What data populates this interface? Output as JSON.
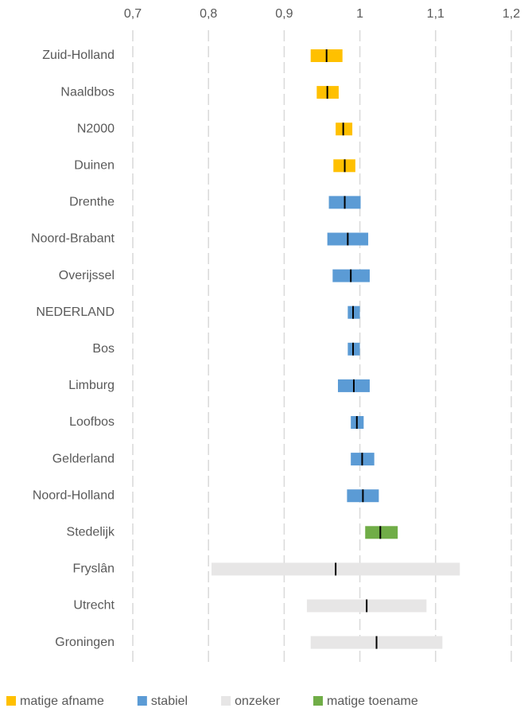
{
  "chart_data": {
    "type": "range",
    "categories": [
      "Zuid-Holland",
      "Naaldbos",
      "N2000",
      "Duinen",
      "Drenthe",
      "Noord-Brabant",
      "Overijssel",
      "NEDERLAND",
      "Bos",
      "Limburg",
      "Loofbos",
      "Gelderland",
      "Noord-Holland",
      "Stedelijk",
      "Fryslân",
      "Utrecht",
      "Groningen"
    ],
    "series": [
      {
        "name": "matige afname",
        "color": "#ffc000",
        "low": [
          0.935,
          0.943,
          0.968,
          0.965,
          null,
          null,
          null,
          null,
          null,
          null,
          null,
          null,
          null,
          null,
          null,
          null,
          null
        ],
        "high": [
          0.977,
          0.972,
          0.99,
          0.994,
          null,
          null,
          null,
          null,
          null,
          null,
          null,
          null,
          null,
          null,
          null,
          null,
          null
        ],
        "values": [
          0.956,
          0.957,
          0.978,
          0.98,
          null,
          null,
          null,
          null,
          null,
          null,
          null,
          null,
          null,
          null,
          null,
          null,
          null
        ]
      },
      {
        "name": "stabiel",
        "color": "#5b9bd5",
        "low": [
          null,
          null,
          null,
          null,
          0.959,
          0.957,
          0.964,
          0.984,
          0.984,
          0.971,
          0.988,
          0.988,
          0.983,
          null,
          null,
          null,
          null
        ],
        "high": [
          null,
          null,
          null,
          null,
          1.001,
          1.011,
          1.013,
          1.0,
          1.0,
          1.013,
          1.005,
          1.019,
          1.025,
          null,
          null,
          null,
          null
        ],
        "values": [
          null,
          null,
          null,
          null,
          0.98,
          0.984,
          0.988,
          0.991,
          0.991,
          0.992,
          0.996,
          1.003,
          1.004,
          null,
          null,
          null,
          null
        ]
      },
      {
        "name": "onzeker",
        "color": "#e7e6e6",
        "low": [
          null,
          null,
          null,
          null,
          null,
          null,
          null,
          null,
          null,
          null,
          null,
          null,
          null,
          null,
          0.804,
          0.93,
          0.935
        ],
        "high": [
          null,
          null,
          null,
          null,
          null,
          null,
          null,
          null,
          null,
          null,
          null,
          null,
          null,
          null,
          1.132,
          1.088,
          1.109
        ],
        "values": [
          null,
          null,
          null,
          null,
          null,
          null,
          null,
          null,
          null,
          null,
          null,
          null,
          null,
          null,
          0.968,
          1.009,
          1.022
        ]
      },
      {
        "name": "matige toename",
        "color": "#70ad47",
        "low": [
          null,
          null,
          null,
          null,
          null,
          null,
          null,
          null,
          null,
          null,
          null,
          null,
          null,
          1.007,
          null,
          null,
          null
        ],
        "high": [
          null,
          null,
          null,
          null,
          null,
          null,
          null,
          null,
          null,
          null,
          null,
          null,
          null,
          1.05,
          null,
          null,
          null
        ],
        "values": [
          null,
          null,
          null,
          null,
          null,
          null,
          null,
          null,
          null,
          null,
          null,
          null,
          null,
          1.027,
          null,
          null,
          null
        ]
      }
    ],
    "xlim": [
      0.7,
      1.2
    ],
    "xticks": [
      {
        "value": 0.7,
        "label": "0,7"
      },
      {
        "value": 0.8,
        "label": "0,8"
      },
      {
        "value": 0.9,
        "label": "0,9"
      },
      1,
      {
        "value": 1.1,
        "label": "1,1"
      },
      {
        "value": 1.2,
        "label": "1,2"
      }
    ],
    "grid": true,
    "legend": "bottom"
  }
}
